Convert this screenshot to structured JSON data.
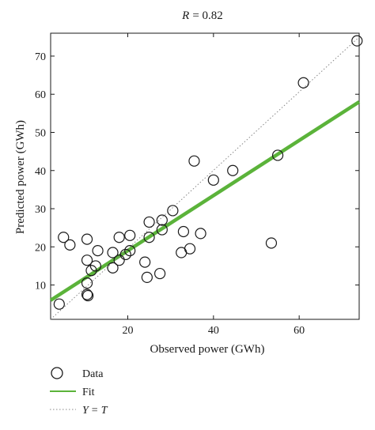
{
  "chart_data": {
    "type": "scatter",
    "title_prefix": "R",
    "title_value": "= 0.82",
    "xlabel": "Observed power (GWh)",
    "ylabel": "Predicted power (GWh)",
    "xlim": [
      2,
      74
    ],
    "ylim": [
      1,
      76
    ],
    "xticks": [
      20,
      40,
      60
    ],
    "yticks": [
      10,
      20,
      30,
      40,
      50,
      60,
      70
    ],
    "grid": false,
    "legend_position": "bottom-left, below plot",
    "colors": {
      "data": "#1a1a1a",
      "fit": "#5bb33a",
      "identity": "#888888"
    },
    "series": [
      {
        "name": "Data",
        "kind": "scatter",
        "points": [
          [
            4,
            5
          ],
          [
            5,
            22.5
          ],
          [
            6.5,
            20.5
          ],
          [
            10.5,
            22
          ],
          [
            10.5,
            16.5
          ],
          [
            10.5,
            10.5
          ],
          [
            10.5,
            7.5
          ],
          [
            10.7,
            7.2
          ],
          [
            11.5,
            13.8
          ],
          [
            12.5,
            15
          ],
          [
            13,
            19
          ],
          [
            16.5,
            18.5
          ],
          [
            16.5,
            14.5
          ],
          [
            18,
            22.5
          ],
          [
            18,
            16.5
          ],
          [
            19.5,
            18
          ],
          [
            20.5,
            23
          ],
          [
            20.5,
            19
          ],
          [
            24,
            16
          ],
          [
            24.5,
            12
          ],
          [
            25,
            26.5
          ],
          [
            25,
            22.5
          ],
          [
            27.5,
            13
          ],
          [
            28,
            27
          ],
          [
            28,
            24.5
          ],
          [
            30.5,
            29.5
          ],
          [
            32.5,
            18.5
          ],
          [
            33,
            24
          ],
          [
            34.5,
            19.5
          ],
          [
            35.5,
            42.5
          ],
          [
            37,
            23.5
          ],
          [
            40,
            37.5
          ],
          [
            44.5,
            40
          ],
          [
            53.5,
            21
          ],
          [
            55,
            44
          ],
          [
            61,
            63
          ],
          [
            73.5,
            74
          ]
        ]
      },
      {
        "name": "Fit",
        "kind": "line",
        "points": [
          [
            2,
            6
          ],
          [
            74,
            58
          ]
        ]
      },
      {
        "name": "Y = T",
        "kind": "dotted-line",
        "points": [
          [
            2,
            1
          ],
          [
            74,
            75
          ]
        ]
      }
    ],
    "legend": [
      {
        "symbol": "circle",
        "label": "Data"
      },
      {
        "symbol": "line",
        "label": "Fit"
      },
      {
        "symbol": "dotted",
        "label_left": "Y",
        "label_right": "T"
      }
    ]
  }
}
